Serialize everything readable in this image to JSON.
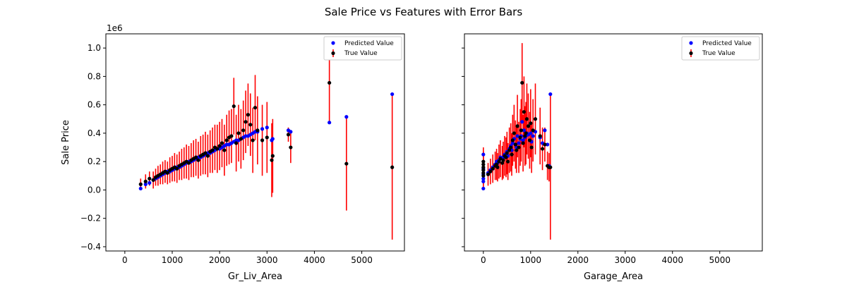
{
  "figure": {
    "title": "Sale Price vs Features with Error Bars",
    "offset_text": "1e6"
  },
  "chart_data": [
    {
      "type": "scatter",
      "xlabel": "Gr_Liv_Area",
      "ylabel": "Sale Price",
      "xlim": [
        -400,
        5900
      ],
      "ylim": [
        -0.43,
        1.1
      ],
      "y_scale_note": "1e6",
      "xticks": [
        "0",
        "1000",
        "2000",
        "3000",
        "4000",
        "5000"
      ],
      "yticks": [
        "−0.4",
        "−0.2",
        "0.0",
        "0.2",
        "0.4",
        "0.6",
        "0.8",
        "1.0"
      ],
      "legend": {
        "position": "top-right",
        "entries": [
          "Predicted Value",
          "True Value"
        ]
      },
      "colors": {
        "predicted": "#0000ff",
        "true": "#000000",
        "error": "#ff0000"
      },
      "series": [
        {
          "name": "True Value",
          "x": [
            334,
            438,
            520,
            600,
            650,
            700,
            750,
            800,
            850,
            900,
            950,
            1000,
            1050,
            1100,
            1150,
            1200,
            1250,
            1300,
            1350,
            1400,
            1450,
            1500,
            1550,
            1600,
            1650,
            1700,
            1750,
            1800,
            1850,
            1900,
            1950,
            2000,
            2050,
            2100,
            2150,
            2200,
            2250,
            2300,
            2350,
            2400,
            2450,
            2500,
            2550,
            2600,
            2650,
            2700,
            2750,
            2800,
            2900,
            3000,
            3100,
            3120,
            3450,
            3500,
            4316,
            4676,
            5642
          ],
          "y": [
            0.04,
            0.06,
            0.08,
            0.07,
            0.09,
            0.1,
            0.11,
            0.12,
            0.13,
            0.12,
            0.14,
            0.15,
            0.16,
            0.15,
            0.17,
            0.18,
            0.19,
            0.2,
            0.19,
            0.21,
            0.22,
            0.23,
            0.21,
            0.24,
            0.25,
            0.26,
            0.24,
            0.27,
            0.28,
            0.3,
            0.29,
            0.31,
            0.33,
            0.28,
            0.35,
            0.37,
            0.38,
            0.59,
            0.33,
            0.4,
            0.36,
            0.42,
            0.48,
            0.53,
            0.46,
            0.35,
            0.58,
            0.42,
            0.35,
            0.37,
            0.21,
            0.24,
            0.39,
            0.3,
            0.755,
            0.185,
            0.16
          ],
          "yerr": [
            0.04,
            0.05,
            0.05,
            0.06,
            0.06,
            0.07,
            0.07,
            0.08,
            0.08,
            0.08,
            0.09,
            0.09,
            0.1,
            0.1,
            0.1,
            0.11,
            0.11,
            0.12,
            0.12,
            0.12,
            0.13,
            0.13,
            0.13,
            0.14,
            0.14,
            0.15,
            0.15,
            0.15,
            0.16,
            0.16,
            0.17,
            0.17,
            0.17,
            0.18,
            0.18,
            0.19,
            0.19,
            0.2,
            0.2,
            0.2,
            0.21,
            0.21,
            0.22,
            0.22,
            0.22,
            0.23,
            0.23,
            0.24,
            0.25,
            0.25,
            0.26,
            0.26,
            0.05,
            0.11,
            0.28,
            0.33,
            0.51
          ]
        },
        {
          "name": "Predicted Value",
          "x": [
            334,
            438,
            520,
            600,
            650,
            700,
            750,
            800,
            850,
            900,
            950,
            1000,
            1050,
            1100,
            1150,
            1200,
            1250,
            1300,
            1350,
            1400,
            1450,
            1500,
            1550,
            1600,
            1650,
            1700,
            1750,
            1800,
            1850,
            1900,
            1950,
            2000,
            2050,
            2100,
            2150,
            2200,
            2250,
            2300,
            2350,
            2400,
            2450,
            2500,
            2550,
            2600,
            2650,
            2700,
            2750,
            2800,
            2900,
            3000,
            3100,
            3120,
            3450,
            3500,
            4316,
            4676,
            5642
          ],
          "y": [
            0.01,
            0.04,
            0.05,
            0.07,
            0.08,
            0.09,
            0.1,
            0.11,
            0.12,
            0.13,
            0.13,
            0.14,
            0.15,
            0.16,
            0.16,
            0.17,
            0.18,
            0.19,
            0.2,
            0.2,
            0.21,
            0.22,
            0.23,
            0.23,
            0.24,
            0.25,
            0.26,
            0.26,
            0.27,
            0.28,
            0.29,
            0.29,
            0.3,
            0.31,
            0.32,
            0.32,
            0.33,
            0.34,
            0.35,
            0.35,
            0.36,
            0.37,
            0.38,
            0.38,
            0.39,
            0.4,
            0.41,
            0.41,
            0.43,
            0.44,
            0.35,
            0.36,
            0.42,
            0.41,
            0.475,
            0.515,
            0.675
          ]
        }
      ]
    },
    {
      "type": "scatter",
      "xlabel": "Garage_Area",
      "ylabel": "",
      "xlim": [
        -400,
        5900
      ],
      "ylim": [
        -0.43,
        1.1
      ],
      "xticks": [
        "0",
        "1000",
        "2000",
        "3000",
        "4000",
        "5000"
      ],
      "legend": {
        "position": "top-right",
        "entries": [
          "Predicted Value",
          "True Value"
        ]
      },
      "colors": {
        "predicted": "#0000ff",
        "true": "#000000",
        "error": "#ff0000"
      },
      "series": [
        {
          "name": "True Value",
          "x": [
            0,
            0,
            0,
            0,
            0,
            0,
            100,
            150,
            200,
            250,
            280,
            300,
            330,
            360,
            400,
            420,
            450,
            480,
            500,
            520,
            550,
            580,
            600,
            620,
            650,
            680,
            700,
            720,
            750,
            780,
            800,
            820,
            840,
            860,
            880,
            900,
            920,
            950,
            980,
            1000,
            1020,
            1050,
            1100,
            1200,
            1250,
            1300,
            1356,
            1390,
            1418
          ],
          "y": [
            0.1,
            0.12,
            0.14,
            0.16,
            0.18,
            0.2,
            0.11,
            0.13,
            0.15,
            0.17,
            0.18,
            0.16,
            0.2,
            0.22,
            0.19,
            0.21,
            0.24,
            0.23,
            0.26,
            0.2,
            0.28,
            0.3,
            0.25,
            0.35,
            0.4,
            0.32,
            0.28,
            0.45,
            0.3,
            0.37,
            0.42,
            0.755,
            0.33,
            0.55,
            0.38,
            0.4,
            0.5,
            0.45,
            0.35,
            0.47,
            0.3,
            0.42,
            0.5,
            0.38,
            0.29,
            0.32,
            0.17,
            0.16,
            0.16
          ],
          "yerr": [
            0.1,
            0.09,
            0.1,
            0.11,
            0.09,
            0.1,
            0.08,
            0.09,
            0.1,
            0.1,
            0.11,
            0.1,
            0.12,
            0.13,
            0.12,
            0.13,
            0.14,
            0.14,
            0.15,
            0.13,
            0.16,
            0.17,
            0.15,
            0.18,
            0.2,
            0.17,
            0.16,
            0.22,
            0.18,
            0.2,
            0.22,
            0.28,
            0.2,
            0.25,
            0.21,
            0.22,
            0.25,
            0.23,
            0.2,
            0.24,
            0.18,
            0.22,
            0.25,
            0.2,
            0.15,
            0.12,
            0.1,
            0.1,
            0.51
          ]
        },
        {
          "name": "Predicted Value",
          "x": [
            0,
            0,
            0,
            0,
            0,
            0,
            100,
            150,
            200,
            250,
            280,
            300,
            330,
            360,
            400,
            420,
            450,
            480,
            500,
            520,
            550,
            580,
            600,
            620,
            650,
            680,
            700,
            720,
            750,
            780,
            800,
            820,
            840,
            860,
            880,
            900,
            920,
            950,
            980,
            1000,
            1020,
            1050,
            1100,
            1200,
            1250,
            1300,
            1356,
            1390,
            1418
          ],
          "y": [
            0.01,
            0.06,
            0.08,
            0.11,
            0.15,
            0.25,
            0.12,
            0.14,
            0.16,
            0.18,
            0.2,
            0.19,
            0.21,
            0.23,
            0.22,
            0.23,
            0.25,
            0.25,
            0.27,
            0.24,
            0.29,
            0.31,
            0.28,
            0.33,
            0.36,
            0.32,
            0.3,
            0.38,
            0.33,
            0.36,
            0.38,
            0.48,
            0.35,
            0.42,
            0.37,
            0.38,
            0.4,
            0.39,
            0.35,
            0.4,
            0.34,
            0.38,
            0.41,
            0.37,
            0.33,
            0.42,
            0.32,
            0.17,
            0.675
          ]
        }
      ]
    }
  ]
}
